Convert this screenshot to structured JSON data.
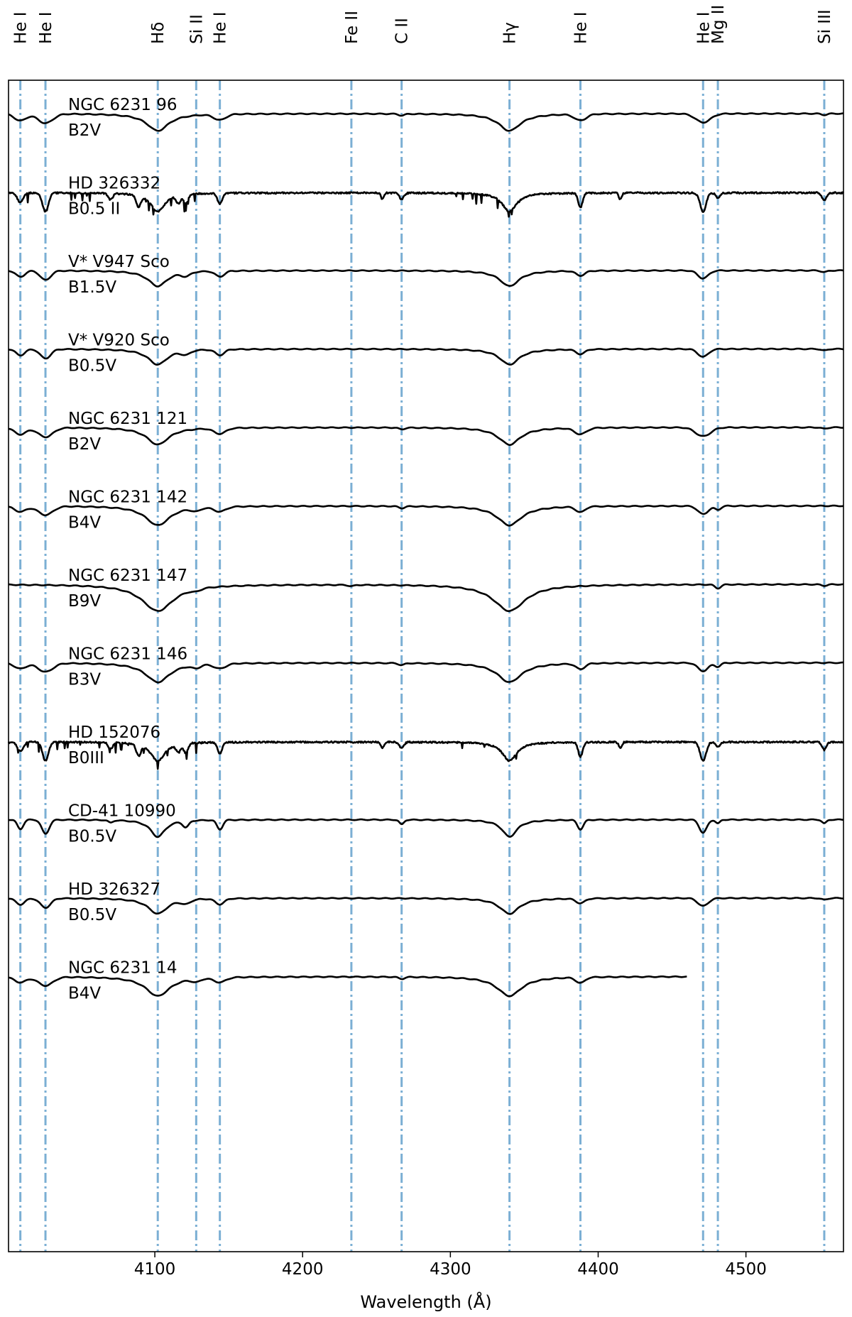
{
  "chart_data": {
    "type": "line",
    "xlabel": "Wavelength (Å)",
    "xlim": [
      4001,
      4566
    ],
    "xticks": [
      4100,
      4200,
      4300,
      4400,
      4500
    ],
    "xtick_labels": [
      "4100",
      "4200",
      "4300",
      "4400",
      "4500"
    ],
    "grid": false,
    "line_markers": [
      {
        "label": "He I",
        "wavelength": 4009
      },
      {
        "label": "He I",
        "wavelength": 4026
      },
      {
        "label": "Hδ",
        "wavelength": 4102
      },
      {
        "label": "Si II",
        "wavelength": 4128
      },
      {
        "label": "He I",
        "wavelength": 4144
      },
      {
        "label": "Fe II",
        "wavelength": 4233
      },
      {
        "label": "C II",
        "wavelength": 4267
      },
      {
        "label": "Hγ",
        "wavelength": 4340
      },
      {
        "label": "He I",
        "wavelength": 4388
      },
      {
        "label": "He I",
        "wavelength": 4471
      },
      {
        "label": "Mg II",
        "wavelength": 4481
      },
      {
        "label": "Si III",
        "wavelength": 4553
      }
    ],
    "marker_color": "#7bafd4",
    "spectrum_color": "#000000",
    "series": [
      {
        "name": "NGC 6231 96",
        "sptype": "B2V",
        "kind": "smooth",
        "x_end": 4566
      },
      {
        "name": "HD 326332",
        "sptype": "B0.5 II",
        "kind": "metal",
        "x_end": 4566
      },
      {
        "name": "V* V947 Sco",
        "sptype": "B1.5V",
        "kind": "earlyB",
        "x_end": 4566
      },
      {
        "name": "V* V920 Sco",
        "sptype": "B0.5V",
        "kind": "earlyB",
        "x_end": 4566
      },
      {
        "name": "NGC 6231 121",
        "sptype": "B2V",
        "kind": "smooth",
        "x_end": 4566
      },
      {
        "name": "NGC 6231 142",
        "sptype": "B4V",
        "kind": "midB",
        "x_end": 4566
      },
      {
        "name": "NGC 6231 147",
        "sptype": "B9V",
        "kind": "lateB",
        "x_end": 4566
      },
      {
        "name": "NGC 6231 146",
        "sptype": "B3V",
        "kind": "midB",
        "x_end": 4566
      },
      {
        "name": "HD 152076",
        "sptype": "B0III",
        "kind": "metal",
        "x_end": 4566
      },
      {
        "name": "CD-41 10990",
        "sptype": "B0.5V",
        "kind": "sharp",
        "x_end": 4566
      },
      {
        "name": "HD 326327",
        "sptype": "B0.5V",
        "kind": "earlyB",
        "x_end": 4566
      },
      {
        "name": "NGC 6231 14",
        "sptype": "B4V",
        "kind": "midB",
        "x_end": 4460
      }
    ]
  }
}
